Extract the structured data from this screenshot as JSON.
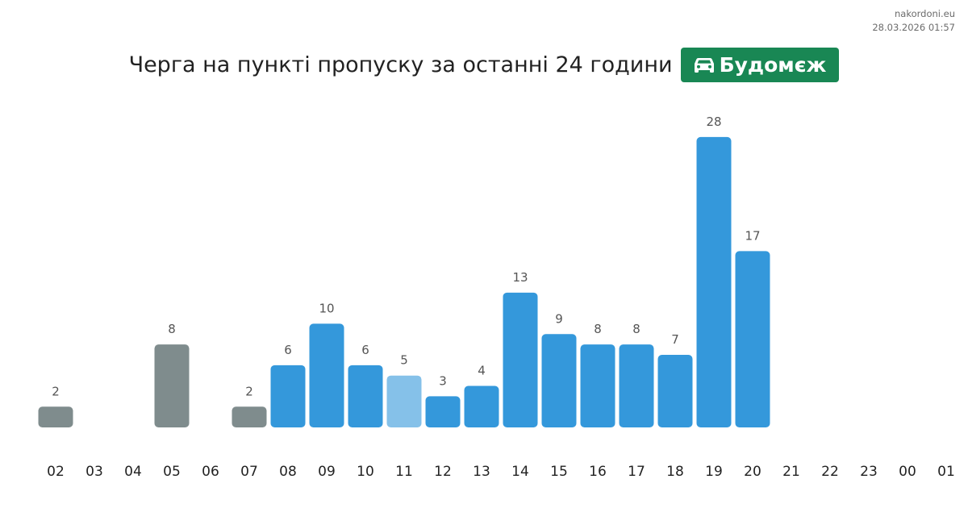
{
  "meta": {
    "site": "nakordoni.eu",
    "timestamp": "28.03.2026 01:57"
  },
  "header": {
    "title": "Черга на пункті пропуску за останні 24 години",
    "badge_icon": "car-icon",
    "badge_label": "Будомєж",
    "badge_color": "#198754"
  },
  "chart_data": {
    "type": "bar",
    "title": "Черга на пункті пропуску за останні 24 години",
    "xlabel": "",
    "ylabel": "",
    "categories": [
      "02",
      "03",
      "04",
      "05",
      "06",
      "07",
      "08",
      "09",
      "10",
      "11",
      "12",
      "13",
      "14",
      "15",
      "16",
      "17",
      "18",
      "19",
      "20",
      "21",
      "22",
      "23",
      "00",
      "01"
    ],
    "values": [
      2,
      null,
      null,
      8,
      null,
      2,
      6,
      10,
      6,
      5,
      3,
      4,
      13,
      9,
      8,
      8,
      7,
      28,
      17,
      null,
      null,
      null,
      null,
      null
    ],
    "bar_status": [
      "gray",
      "none",
      "none",
      "gray",
      "none",
      "gray",
      "blue",
      "blue",
      "blue",
      "light",
      "blue",
      "blue",
      "blue",
      "blue",
      "blue",
      "blue",
      "blue",
      "blue",
      "blue",
      "none",
      "none",
      "none",
      "none",
      "none"
    ],
    "colors": {
      "gray": "#7f8c8d",
      "blue": "#3498db",
      "light": "#85c1e9"
    },
    "ylim": [
      0,
      28
    ],
    "grid": false,
    "legend": "none",
    "data_labels": true
  }
}
